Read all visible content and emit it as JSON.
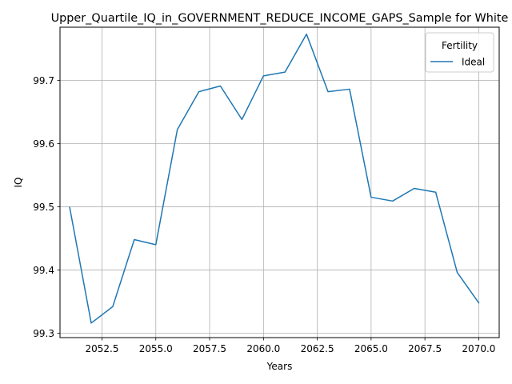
{
  "chart_data": {
    "type": "line",
    "title": "Upper_Quartile_IQ_in_GOVERNMENT_REDUCE_INCOME_GAPS_Sample for White",
    "xlabel": "Years",
    "ylabel": "IQ",
    "xlim": [
      2050.55,
      2070.95
    ],
    "ylim": [
      99.293,
      99.784
    ],
    "xticks": [
      2052.5,
      2055.0,
      2057.5,
      2060.0,
      2062.5,
      2065.0,
      2067.5,
      2070.0
    ],
    "xtick_labels": [
      "2052.5",
      "2055.0",
      "2057.5",
      "2060.0",
      "2062.5",
      "2065.0",
      "2067.5",
      "2070.0"
    ],
    "yticks": [
      99.3,
      99.4,
      99.5,
      99.6,
      99.7
    ],
    "ytick_labels": [
      "99.3",
      "99.4",
      "99.5",
      "99.6",
      "99.7"
    ],
    "grid": true,
    "legend": {
      "title": "Fertility",
      "placement": "upper right"
    },
    "x": [
      2051,
      2052,
      2053,
      2054,
      2055,
      2056,
      2057,
      2058,
      2059,
      2060,
      2061,
      2062,
      2063,
      2064,
      2065,
      2066,
      2067,
      2068,
      2069,
      2070
    ],
    "series": [
      {
        "name": "Ideal",
        "color": "#1f77b4",
        "values": [
          99.499,
          99.316,
          99.342,
          99.448,
          99.44,
          99.622,
          99.682,
          99.691,
          99.638,
          99.707,
          99.713,
          99.773,
          99.682,
          99.686,
          99.515,
          99.509,
          99.529,
          99.523,
          99.396,
          99.348
        ]
      }
    ]
  }
}
